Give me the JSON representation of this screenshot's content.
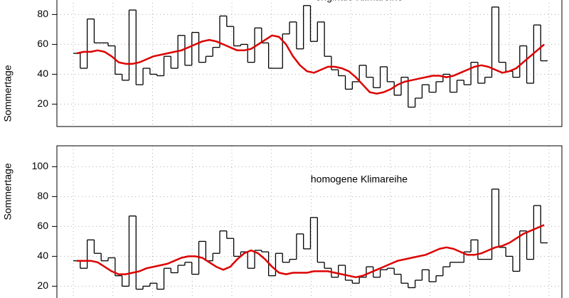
{
  "chart_data": [
    {
      "type": "line",
      "title": "originale Klimareihe",
      "y_label": "Sommertage",
      "ylim": [
        5,
        114
      ],
      "yticks": [
        20,
        40,
        60,
        80
      ],
      "grid": true,
      "series": [
        {
          "color": "#000000",
          "style": "step",
          "values": [
            54,
            44,
            77,
            61,
            61,
            59,
            40,
            36,
            83,
            33,
            44,
            40,
            39,
            52,
            44,
            66,
            46,
            68,
            48,
            52,
            58,
            79,
            72,
            59,
            60,
            48,
            71,
            61,
            44,
            44,
            67,
            75,
            57,
            86,
            62,
            75,
            52,
            43,
            39,
            30,
            35,
            46,
            38,
            31,
            45,
            35,
            26,
            38,
            18,
            24,
            33,
            28,
            35,
            40,
            28,
            36,
            33,
            48,
            34,
            38,
            85,
            48,
            42,
            38,
            59,
            34,
            73,
            49
          ]
        },
        {
          "color": "#dd0000",
          "style": "smooth",
          "values": [
            54,
            55,
            55,
            56,
            55,
            52,
            48,
            47,
            47,
            48,
            50,
            52,
            53,
            54,
            55,
            56,
            58,
            60,
            62,
            63,
            62,
            60,
            58,
            56,
            56,
            57,
            60,
            63,
            66,
            65,
            60,
            52,
            46,
            42,
            41,
            43,
            45,
            45,
            44,
            42,
            38,
            33,
            28,
            27,
            28,
            30,
            33,
            35,
            36,
            37,
            38,
            39,
            39,
            38,
            39,
            41,
            43,
            45,
            46,
            45,
            43,
            41,
            42,
            44,
            48,
            52,
            56,
            60
          ]
        }
      ]
    },
    {
      "type": "line",
      "title": "homogene Klimareihe",
      "y_label": "Sommertage",
      "ylim": [
        5,
        114
      ],
      "yticks": [
        20,
        40,
        60,
        80,
        100
      ],
      "grid": true,
      "series": [
        {
          "color": "#000000",
          "style": "step",
          "values": [
            37,
            32,
            51,
            42,
            37,
            39,
            27,
            20,
            67,
            18,
            20,
            22,
            18,
            32,
            29,
            34,
            36,
            28,
            50,
            37,
            42,
            57,
            52,
            40,
            43,
            32,
            44,
            43,
            27,
            42,
            36,
            38,
            55,
            45,
            66,
            36,
            32,
            26,
            34,
            24,
            22,
            26,
            33,
            26,
            31,
            32,
            28,
            22,
            19,
            24,
            31,
            23,
            27,
            33,
            36,
            36,
            43,
            51,
            38,
            38,
            85,
            46,
            40,
            30,
            57,
            38,
            74,
            49
          ]
        },
        {
          "color": "#dd0000",
          "style": "smooth",
          "values": [
            37,
            37,
            37,
            36,
            33,
            30,
            28,
            28,
            29,
            30,
            32,
            33,
            34,
            35,
            37,
            39,
            40,
            40,
            39,
            36,
            33,
            31,
            33,
            38,
            42,
            44,
            42,
            38,
            33,
            29,
            28,
            29,
            29,
            29,
            30,
            30,
            30,
            29,
            28,
            27,
            26,
            27,
            29,
            31,
            33,
            35,
            37,
            38,
            39,
            40,
            41,
            43,
            45,
            46,
            45,
            43,
            41,
            41,
            42,
            44,
            46,
            47,
            49,
            52,
            55,
            57,
            59,
            61
          ]
        }
      ]
    }
  ]
}
